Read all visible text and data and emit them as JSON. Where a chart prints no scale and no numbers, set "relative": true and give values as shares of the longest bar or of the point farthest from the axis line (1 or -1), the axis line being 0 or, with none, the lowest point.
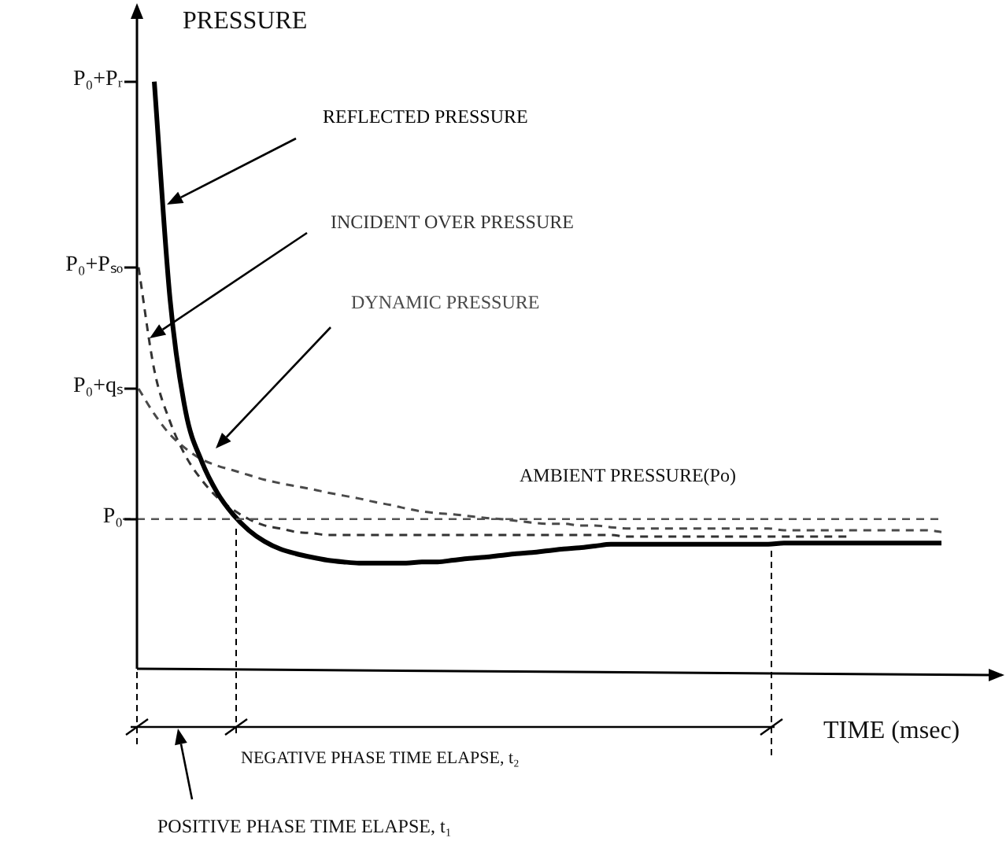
{
  "chart_data": {
    "type": "line",
    "relative": true,
    "marker": "none",
    "xlabel": "TIME (msec)",
    "ylabel": "PRESSURE",
    "categories": [
      null,
      null,
      null,
      null,
      null,
      null,
      null,
      null,
      null,
      null,
      null,
      null,
      null,
      null,
      null,
      null,
      null,
      null,
      null,
      null,
      null,
      null,
      null,
      null,
      null,
      null,
      null,
      null,
      null,
      null,
      null,
      null,
      null,
      null,
      null,
      null,
      null,
      null,
      null,
      null,
      null,
      null,
      null,
      null,
      null,
      null,
      null,
      null,
      null,
      null,
      null,
      null
    ],
    "series": [
      {
        "name": "REFLECTED PRESSURE",
        "color": "#000000",
        "line_style": "solid",
        "values": [
          null,
          1,
          0.63,
          0.437,
          0.354,
          0.3,
          0.263,
          0.236,
          0.217,
          0.204,
          0.196,
          0.19,
          0.185,
          0.182,
          0.18,
          0.18,
          0.18,
          0.18,
          0.182,
          0.182,
          0.185,
          0.188,
          0.19,
          0.193,
          0.196,
          0.198,
          0.201,
          0.204,
          0.206,
          0.209,
          0.212,
          0.212,
          0.212,
          0.212,
          0.212,
          0.212,
          0.212,
          0.212,
          0.212,
          0.212,
          0.212,
          0.214,
          0.214,
          0.214,
          0.214,
          0.214,
          0.214,
          0.214,
          0.214,
          0.214,
          0.214,
          0.214
        ]
      },
      {
        "name": "INCIDENT OVER PRESSURE",
        "color": "#333333",
        "line_style": "dashed",
        "values": [
          0.684,
          0.509,
          0.421,
          0.362,
          0.322,
          0.292,
          0.271,
          0.255,
          0.244,
          0.239,
          0.233,
          0.231,
          0.228,
          0.228,
          0.228,
          0.228,
          0.228,
          0.228,
          0.228,
          0.228,
          0.228,
          0.228,
          0.228,
          0.228,
          0.228,
          0.228,
          0.228,
          0.228,
          0.228,
          0.228,
          0.228,
          0.225,
          0.225,
          0.225,
          0.225,
          0.225,
          0.225,
          0.225,
          0.225,
          0.225,
          0.225,
          0.225,
          0.225,
          0.225,
          0.225,
          0.225,
          null,
          null,
          null,
          null,
          null,
          null
        ]
      },
      {
        "name": "DYNAMIC PRESSURE",
        "color": "#4a4a4a",
        "line_style": "dashed",
        "values": [
          0.477,
          0.434,
          0.399,
          0.375,
          0.357,
          0.346,
          0.338,
          0.33,
          0.322,
          0.316,
          0.311,
          0.306,
          0.3,
          0.295,
          0.29,
          0.284,
          0.279,
          0.273,
          0.268,
          0.265,
          0.263,
          0.26,
          0.257,
          0.255,
          0.252,
          0.249,
          0.247,
          0.247,
          0.244,
          0.244,
          0.241,
          0.239,
          0.239,
          0.239,
          0.239,
          0.239,
          0.239,
          0.239,
          0.239,
          0.239,
          0.239,
          0.236,
          0.236,
          0.236,
          0.236,
          0.236,
          0.236,
          0.236,
          0.236,
          0.236,
          0.236,
          0.233
        ]
      }
    ],
    "ref_lines": [
      {
        "axis": "y",
        "value": 0.255,
        "label": "AMBIENT PRESSURE(Po)",
        "color": "#555555",
        "line_style": "dashed"
      }
    ],
    "annotations": [
      "P₀+Pᵣ",
      "P₀+Pₛₒ",
      "P₀+qₛ",
      "P₀",
      "NEGATIVE PHASE TIME ELAPSE, t₂",
      "POSITIVE PHASE TIME ELAPSE, t₁"
    ]
  }
}
